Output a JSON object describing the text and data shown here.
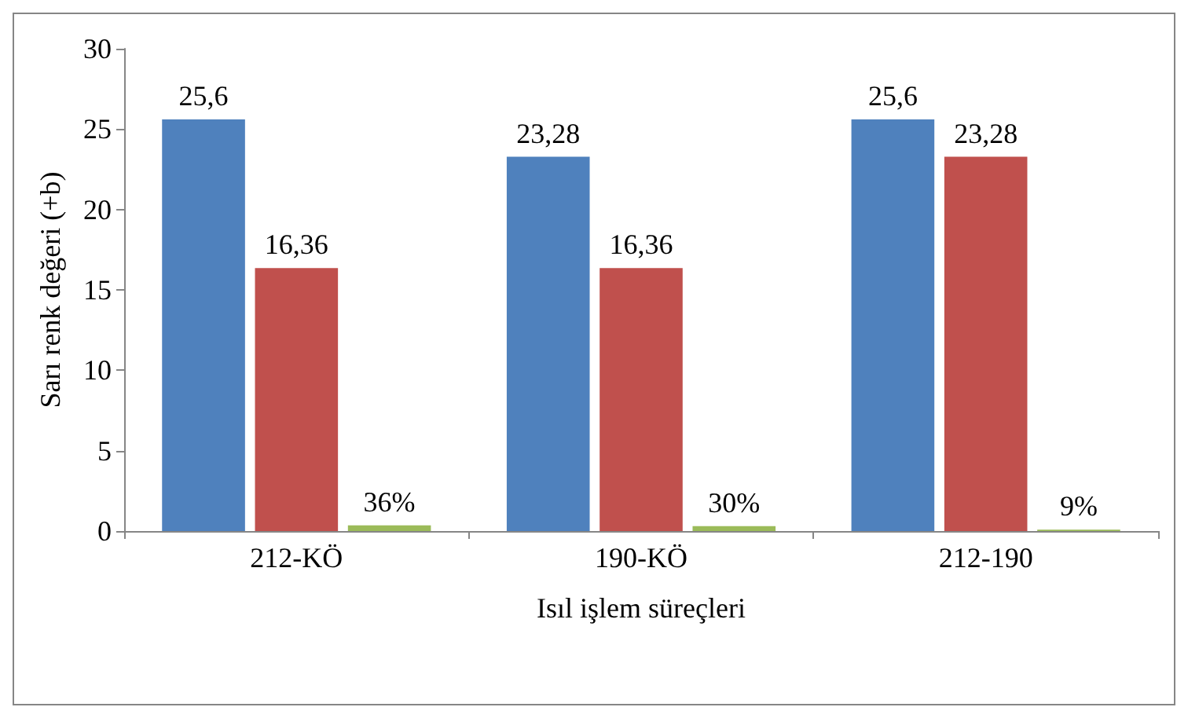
{
  "chart_data": {
    "type": "bar",
    "xlabel": "Isıl işlem süreçleri",
    "ylabel": "Sarı renk değeri (+b)",
    "categories": [
      "212-KÖ",
      "190-KÖ",
      "212-190"
    ],
    "series": [
      {
        "color": "#4f81bd",
        "values": [
          25.6,
          23.28,
          25.6
        ],
        "value_labels": [
          "25,6",
          "23,28",
          "25,6"
        ]
      },
      {
        "color": "#c0504d",
        "values": [
          16.36,
          16.36,
          23.28
        ],
        "value_labels": [
          "16,36",
          "16,36",
          "23,28"
        ]
      },
      {
        "color": "#9bbb59",
        "values": [
          0.36,
          0.3,
          0.09
        ],
        "value_labels": [
          "36%",
          "30%",
          "9%"
        ]
      }
    ],
    "ylim": [
      0,
      30
    ],
    "yticks": [
      0,
      5,
      10,
      15,
      20,
      25,
      30
    ],
    "grid": false
  }
}
